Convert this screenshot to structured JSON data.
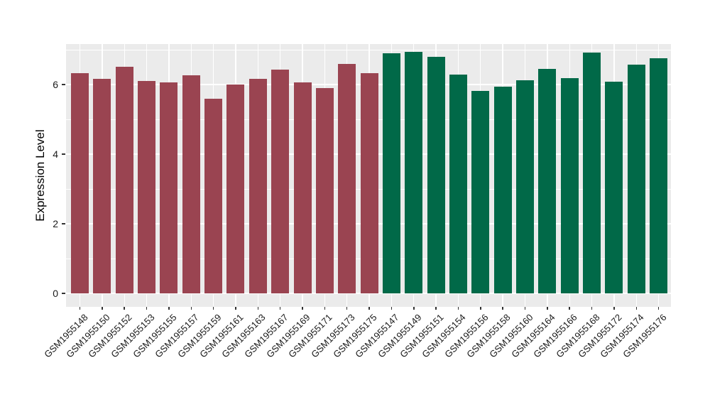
{
  "figure": {
    "background": "#FFFFFF",
    "panel_background": "#EBEBEB",
    "gridline_color": "#FFFFFF",
    "axis_text_color": "#1A1A1A",
    "tick_mark_color": "#333333"
  },
  "chart_data": {
    "type": "bar",
    "title": "",
    "xlabel": "",
    "ylabel": "Expression Level",
    "ylim": [
      0,
      7.2
    ],
    "yticks": [
      0,
      2,
      4,
      6
    ],
    "yticks_minor": [
      1,
      3,
      5,
      7
    ],
    "grid": "on",
    "legend": "none",
    "x_tick_rotation_deg": 45,
    "categories": [
      "GSM1955148",
      "GSM1955150",
      "GSM1955152",
      "GSM1955153",
      "GSM1955155",
      "GSM1955157",
      "GSM1955159",
      "GSM1955161",
      "GSM1955163",
      "GSM1955167",
      "GSM1955169",
      "GSM1955171",
      "GSM1955173",
      "GSM1955175",
      "GSM1955147",
      "GSM1955149",
      "GSM1955151",
      "GSM1955154",
      "GSM1955156",
      "GSM1955158",
      "GSM1955160",
      "GSM1955164",
      "GSM1955166",
      "GSM1955168",
      "GSM1955172",
      "GSM1955174",
      "GSM1955176"
    ],
    "values": [
      6.33,
      6.17,
      6.51,
      6.11,
      6.06,
      6.27,
      5.59,
      6.01,
      6.16,
      6.43,
      6.07,
      5.9,
      6.59,
      6.33,
      6.9,
      6.94,
      6.8,
      6.29,
      5.82,
      5.94,
      6.12,
      6.45,
      6.18,
      6.92,
      6.08,
      6.57,
      6.76
    ],
    "groups": [
      "group1",
      "group1",
      "group1",
      "group1",
      "group1",
      "group1",
      "group1",
      "group1",
      "group1",
      "group1",
      "group1",
      "group1",
      "group1",
      "group1",
      "group2",
      "group2",
      "group2",
      "group2",
      "group2",
      "group2",
      "group2",
      "group2",
      "group2",
      "group2",
      "group2",
      "group2",
      "group2"
    ],
    "group_colors": {
      "group1": "#9A4451",
      "group2": "#016948"
    }
  }
}
